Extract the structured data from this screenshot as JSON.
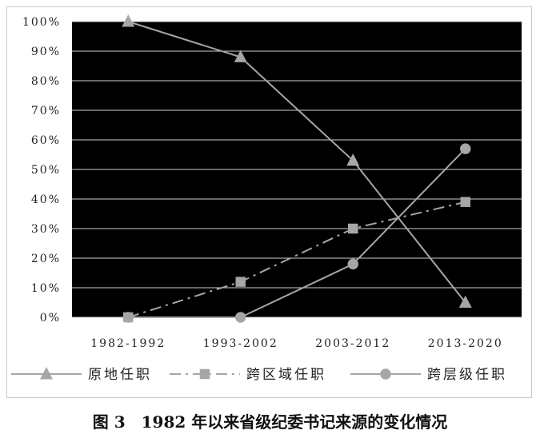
{
  "caption": "图 3　1982 年以来省级纪委书记来源的变化情况",
  "chart_data": {
    "type": "line",
    "categories": [
      "1982-1992",
      "1993-2002",
      "2003-2012",
      "2013-2020"
    ],
    "y_ticks": [
      "0%",
      "10%",
      "20%",
      "30%",
      "40%",
      "50%",
      "60%",
      "70%",
      "80%",
      "90%",
      "100%"
    ],
    "ylim": [
      0,
      100
    ],
    "legend_position": "bottom",
    "grid": true,
    "plot_background": "#000000",
    "series": [
      {
        "name": "原地任职",
        "values": [
          100,
          88,
          53,
          5
        ],
        "marker": "triangle",
        "line_style": "solid",
        "color": "#a6a6a6"
      },
      {
        "name": "跨区域任职",
        "values": [
          0,
          12,
          30,
          39
        ],
        "marker": "square",
        "line_style": "dashdot",
        "color": "#a6a6a6"
      },
      {
        "name": "跨层级任职",
        "values": [
          0,
          0,
          18,
          57
        ],
        "marker": "circle",
        "line_style": "solid",
        "color": "#a6a6a6"
      }
    ]
  }
}
